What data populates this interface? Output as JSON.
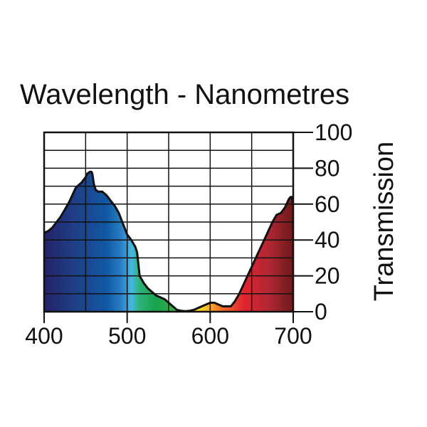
{
  "chart_data": {
    "type": "area",
    "title": "Wavelength - Nanometres",
    "xlabel": "",
    "ylabel": "Transmission",
    "xlim": [
      400,
      700
    ],
    "ylim": [
      0,
      100
    ],
    "grid": true,
    "x_ticks": [
      400,
      500,
      600,
      700
    ],
    "y_ticks": [
      0,
      20,
      40,
      60,
      80,
      100
    ],
    "x": [
      400,
      405,
      410,
      415,
      420,
      425,
      430,
      435,
      438,
      440,
      445,
      450,
      452,
      455,
      457,
      458,
      460,
      462,
      465,
      470,
      475,
      480,
      485,
      490,
      495,
      500,
      505,
      510,
      512,
      515,
      520,
      525,
      530,
      535,
      540,
      545,
      550,
      555,
      560,
      565,
      570,
      575,
      580,
      585,
      590,
      595,
      600,
      605,
      610,
      615,
      620,
      625,
      630,
      635,
      640,
      645,
      650,
      655,
      660,
      665,
      670,
      675,
      680,
      685,
      690,
      693,
      695,
      697,
      698,
      700
    ],
    "series": [
      {
        "values": [
          44,
          45,
          47,
          50,
          53,
          57,
          61,
          66,
          69,
          70,
          72,
          75,
          77,
          78,
          78,
          77,
          71,
          68,
          67,
          67,
          65,
          62,
          59,
          55,
          49,
          43,
          40,
          36,
          33,
          20,
          16,
          13,
          11,
          9,
          8,
          7,
          5,
          3,
          1,
          0.5,
          0.3,
          0.5,
          1,
          2,
          3,
          4,
          5,
          5,
          4,
          3,
          3,
          3,
          6,
          10,
          15,
          20,
          25,
          30,
          35,
          40,
          45,
          50,
          54,
          55,
          58,
          61,
          63,
          64,
          64,
          61
        ]
      }
    ]
  }
}
